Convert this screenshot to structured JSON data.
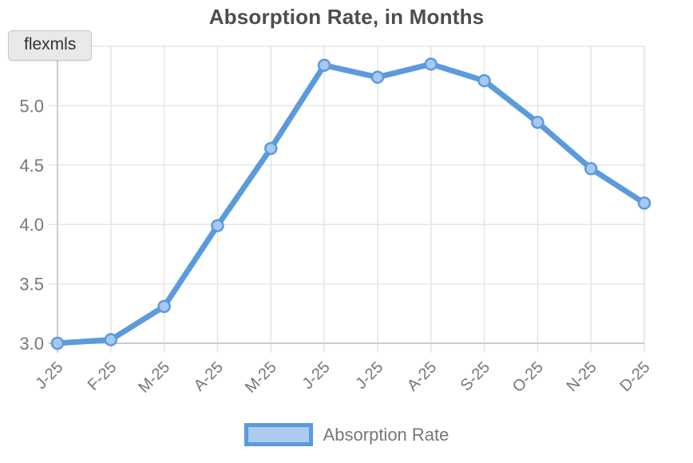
{
  "title": "Absorption Rate, in Months",
  "badge": {
    "label": "flexmls"
  },
  "legend": {
    "label": "Absorption Rate"
  },
  "chart_data": {
    "type": "line",
    "title": "Absorption Rate, in Months",
    "categories": [
      "J-25",
      "F-25",
      "M-25",
      "A-25",
      "M-25",
      "J-25",
      "J-25",
      "A-25",
      "S-25",
      "O-25",
      "N-25",
      "D-25"
    ],
    "series": [
      {
        "name": "Absorption Rate",
        "values": [
          3.0,
          3.03,
          3.31,
          3.99,
          4.64,
          5.34,
          5.24,
          5.35,
          5.21,
          4.86,
          4.47,
          4.18
        ]
      }
    ],
    "xlabel": "",
    "ylabel": "",
    "ylim": [
      3.0,
      5.5
    ],
    "yticks": [
      3.0,
      3.5,
      4.0,
      4.5,
      5.0
    ],
    "grid": true,
    "legend_position": "bottom"
  },
  "colors": {
    "line": "#5b9add",
    "point_fill": "#a8c8ef",
    "legend_fill": "#abccf1",
    "grid": "#e5e5e5",
    "axis_border": "#cccccc",
    "tick_label": "#777777",
    "title": "#4d4d4d",
    "badge_bg": "#e9e9e9",
    "badge_border": "#c6c6c6",
    "badge_text": "#333333"
  }
}
